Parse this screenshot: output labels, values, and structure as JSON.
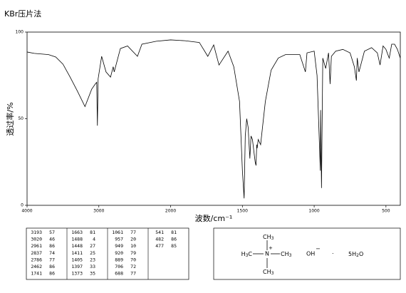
{
  "chart_data": {
    "type": "line",
    "title": "KBr压片法",
    "x_label": "波数/cm⁻¹",
    "y_label": "透过率/%",
    "x": [
      4000,
      3900,
      3700,
      3600,
      3500,
      3400,
      3300,
      3193,
      3100,
      3050,
      3030,
      3020,
      3010,
      2961,
      2900,
      2837,
      2800,
      2786,
      2700,
      2600,
      2462,
      2400,
      2200,
      2000,
      1900,
      1800,
      1741,
      1700,
      1663,
      1600,
      1560,
      1520,
      1500,
      1488,
      1480,
      1470,
      1460,
      1448,
      1440,
      1430,
      1411,
      1405,
      1400,
      1397,
      1390,
      1373,
      1360,
      1340,
      1300,
      1250,
      1200,
      1100,
      1061,
      1050,
      1000,
      980,
      957,
      955,
      949,
      940,
      920,
      900,
      889,
      880,
      850,
      800,
      750,
      720,
      706,
      700,
      688,
      650,
      600,
      560,
      541,
      520,
      500,
      482,
      477,
      460,
      440,
      420,
      400
    ],
    "values": [
      88.5,
      87.7,
      87,
      85.6,
      81.5,
      74,
      66,
      57,
      67,
      70,
      71,
      46,
      73,
      86,
      77,
      74,
      80,
      77,
      90.5,
      92,
      86,
      93,
      94.7,
      95.5,
      95,
      94,
      86,
      92.6,
      81,
      89,
      80,
      60,
      20,
      4,
      40,
      50,
      45,
      27,
      40,
      38,
      25,
      23,
      35,
      33,
      38,
      35,
      45,
      60,
      78,
      85,
      87,
      87,
      77,
      88,
      89,
      75,
      20,
      55,
      10,
      85,
      79,
      88,
      70,
      86,
      89,
      90,
      88,
      80,
      72,
      85,
      77,
      89,
      91,
      88,
      81,
      92,
      90,
      86,
      85,
      93,
      93,
      90,
      85
    ],
    "color": "#000000",
    "xlim": [
      4000,
      400
    ],
    "xticks": [
      4000,
      3000,
      2000,
      1500,
      1000,
      500
    ],
    "ylim": [
      0,
      100
    ],
    "yticks": [
      0,
      50,
      100
    ]
  },
  "peak_table": [
    [
      3193,
      57
    ],
    [
      3020,
      46
    ],
    [
      2961,
      86
    ],
    [
      2837,
      74
    ],
    [
      2786,
      77
    ],
    [
      2462,
      86
    ],
    [
      1741,
      86
    ],
    [
      1663,
      81
    ],
    [
      1488,
      4
    ],
    [
      1448,
      27
    ],
    [
      1411,
      25
    ],
    [
      1405,
      23
    ],
    [
      1397,
      33
    ],
    [
      1373,
      35
    ],
    [
      1061,
      77
    ],
    [
      957,
      20
    ],
    [
      949,
      10
    ],
    [
      920,
      79
    ],
    [
      889,
      70
    ],
    [
      706,
      72
    ],
    [
      688,
      77
    ],
    [
      541,
      81
    ],
    [
      482,
      86
    ],
    [
      477,
      85
    ]
  ],
  "structure": {
    "center": "N",
    "charge": "+",
    "top": {
      "main": "CH",
      "sub": "3"
    },
    "left": {
      "main": "H",
      "sub": "3",
      "tail": "C"
    },
    "right": {
      "main": "CH",
      "sub": "3"
    },
    "bottom": {
      "main": "CH",
      "sub": "3"
    },
    "anion": "OH",
    "anion_charge": "−",
    "dot": "·",
    "water": {
      "coef": "5H",
      "sub": "2",
      "tail": "O"
    }
  }
}
